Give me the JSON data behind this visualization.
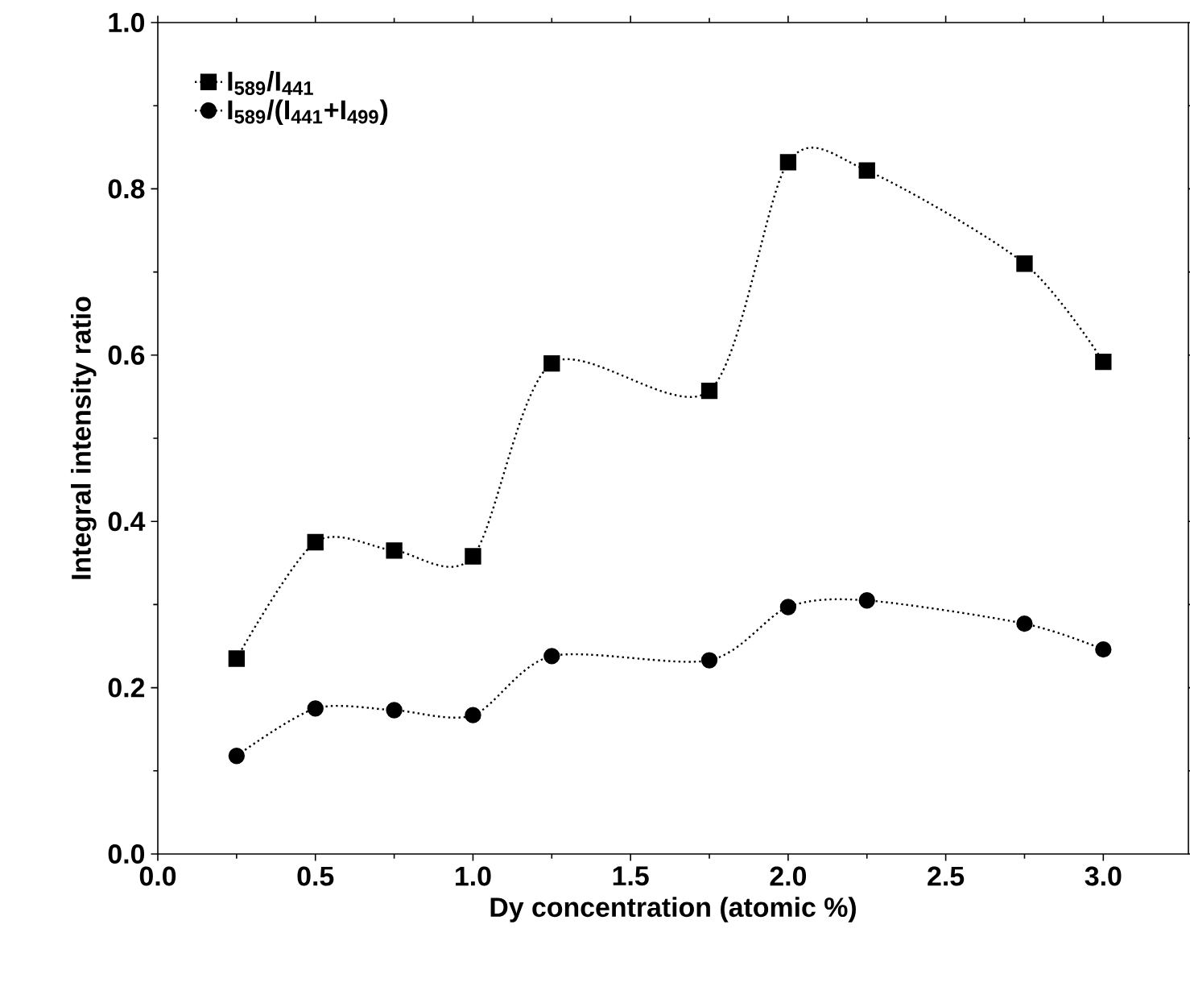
{
  "chart_data": {
    "type": "line",
    "xlabel": "Dy concentration (atomic %)",
    "ylabel": "Integral intensity ratio",
    "x": [
      0.25,
      0.5,
      0.75,
      1.0,
      1.25,
      1.75,
      2.0,
      2.25,
      2.75,
      3.0
    ],
    "series": [
      {
        "name": "I$_{589}$/I$_{441}$",
        "color": "#000000",
        "marker": "square",
        "values": [
          0.235,
          0.375,
          0.365,
          0.358,
          0.59,
          0.557,
          0.832,
          0.822,
          0.71,
          0.592
        ]
      },
      {
        "name": "I$_{589}$/(I$_{441}$+I$_{499}$)",
        "color": "#000000",
        "marker": "circle",
        "values": [
          0.118,
          0.175,
          0.173,
          0.167,
          0.238,
          0.233,
          0.297,
          0.305,
          0.277,
          0.246
        ]
      }
    ],
    "line_style": "dotted",
    "legend": "top left",
    "grid": false,
    "xlim": [
      0,
      3.27
    ],
    "ylim": [
      0,
      1.0
    ],
    "xticks": [
      {
        "value": 0,
        "label": "0.0"
      },
      {
        "value": 0.5,
        "label": "0.5"
      },
      {
        "value": 1.0,
        "label": "1.0"
      },
      {
        "value": 1.5,
        "label": "1.5"
      },
      {
        "value": 2.0,
        "label": "2.0"
      },
      {
        "value": 2.5,
        "label": "2.5"
      },
      {
        "value": 3.0,
        "label": "3.0"
      }
    ],
    "yticks": [
      {
        "value": 0,
        "label": "0.0"
      },
      {
        "value": 0.2,
        "label": "0.2"
      },
      {
        "value": 0.4,
        "label": "0.4"
      },
      {
        "value": 0.6,
        "label": "0.6"
      },
      {
        "value": 0.8,
        "label": "0.8"
      },
      {
        "value": 1.0,
        "label": "1.0"
      }
    ]
  }
}
